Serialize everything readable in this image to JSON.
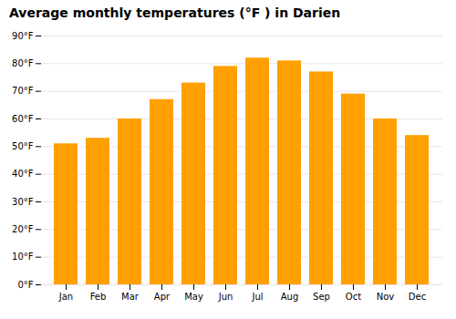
{
  "chart_data": {
    "type": "bar",
    "title": "Average monthly temperatures (°F ) in Darien",
    "categories": [
      "Jan",
      "Feb",
      "Mar",
      "Apr",
      "May",
      "Jun",
      "Jul",
      "Aug",
      "Sep",
      "Oct",
      "Nov",
      "Dec"
    ],
    "values": [
      51,
      53,
      60,
      67,
      73,
      79,
      82,
      81,
      77,
      69,
      60,
      54
    ],
    "color": "#FFA000",
    "ylim": [
      0,
      90
    ],
    "yticks": [
      {
        "value": 0,
        "label": "0°F"
      },
      {
        "value": 10,
        "label": "10°F"
      },
      {
        "value": 20,
        "label": "20°F"
      },
      {
        "value": 30,
        "label": "30°F"
      },
      {
        "value": 40,
        "label": "40°F"
      },
      {
        "value": 50,
        "label": "50°F"
      },
      {
        "value": 60,
        "label": "60°F"
      },
      {
        "value": 70,
        "label": "70°F"
      },
      {
        "value": 80,
        "label": "80°F"
      },
      {
        "value": 90,
        "label": "90°F"
      }
    ],
    "grid": true
  }
}
